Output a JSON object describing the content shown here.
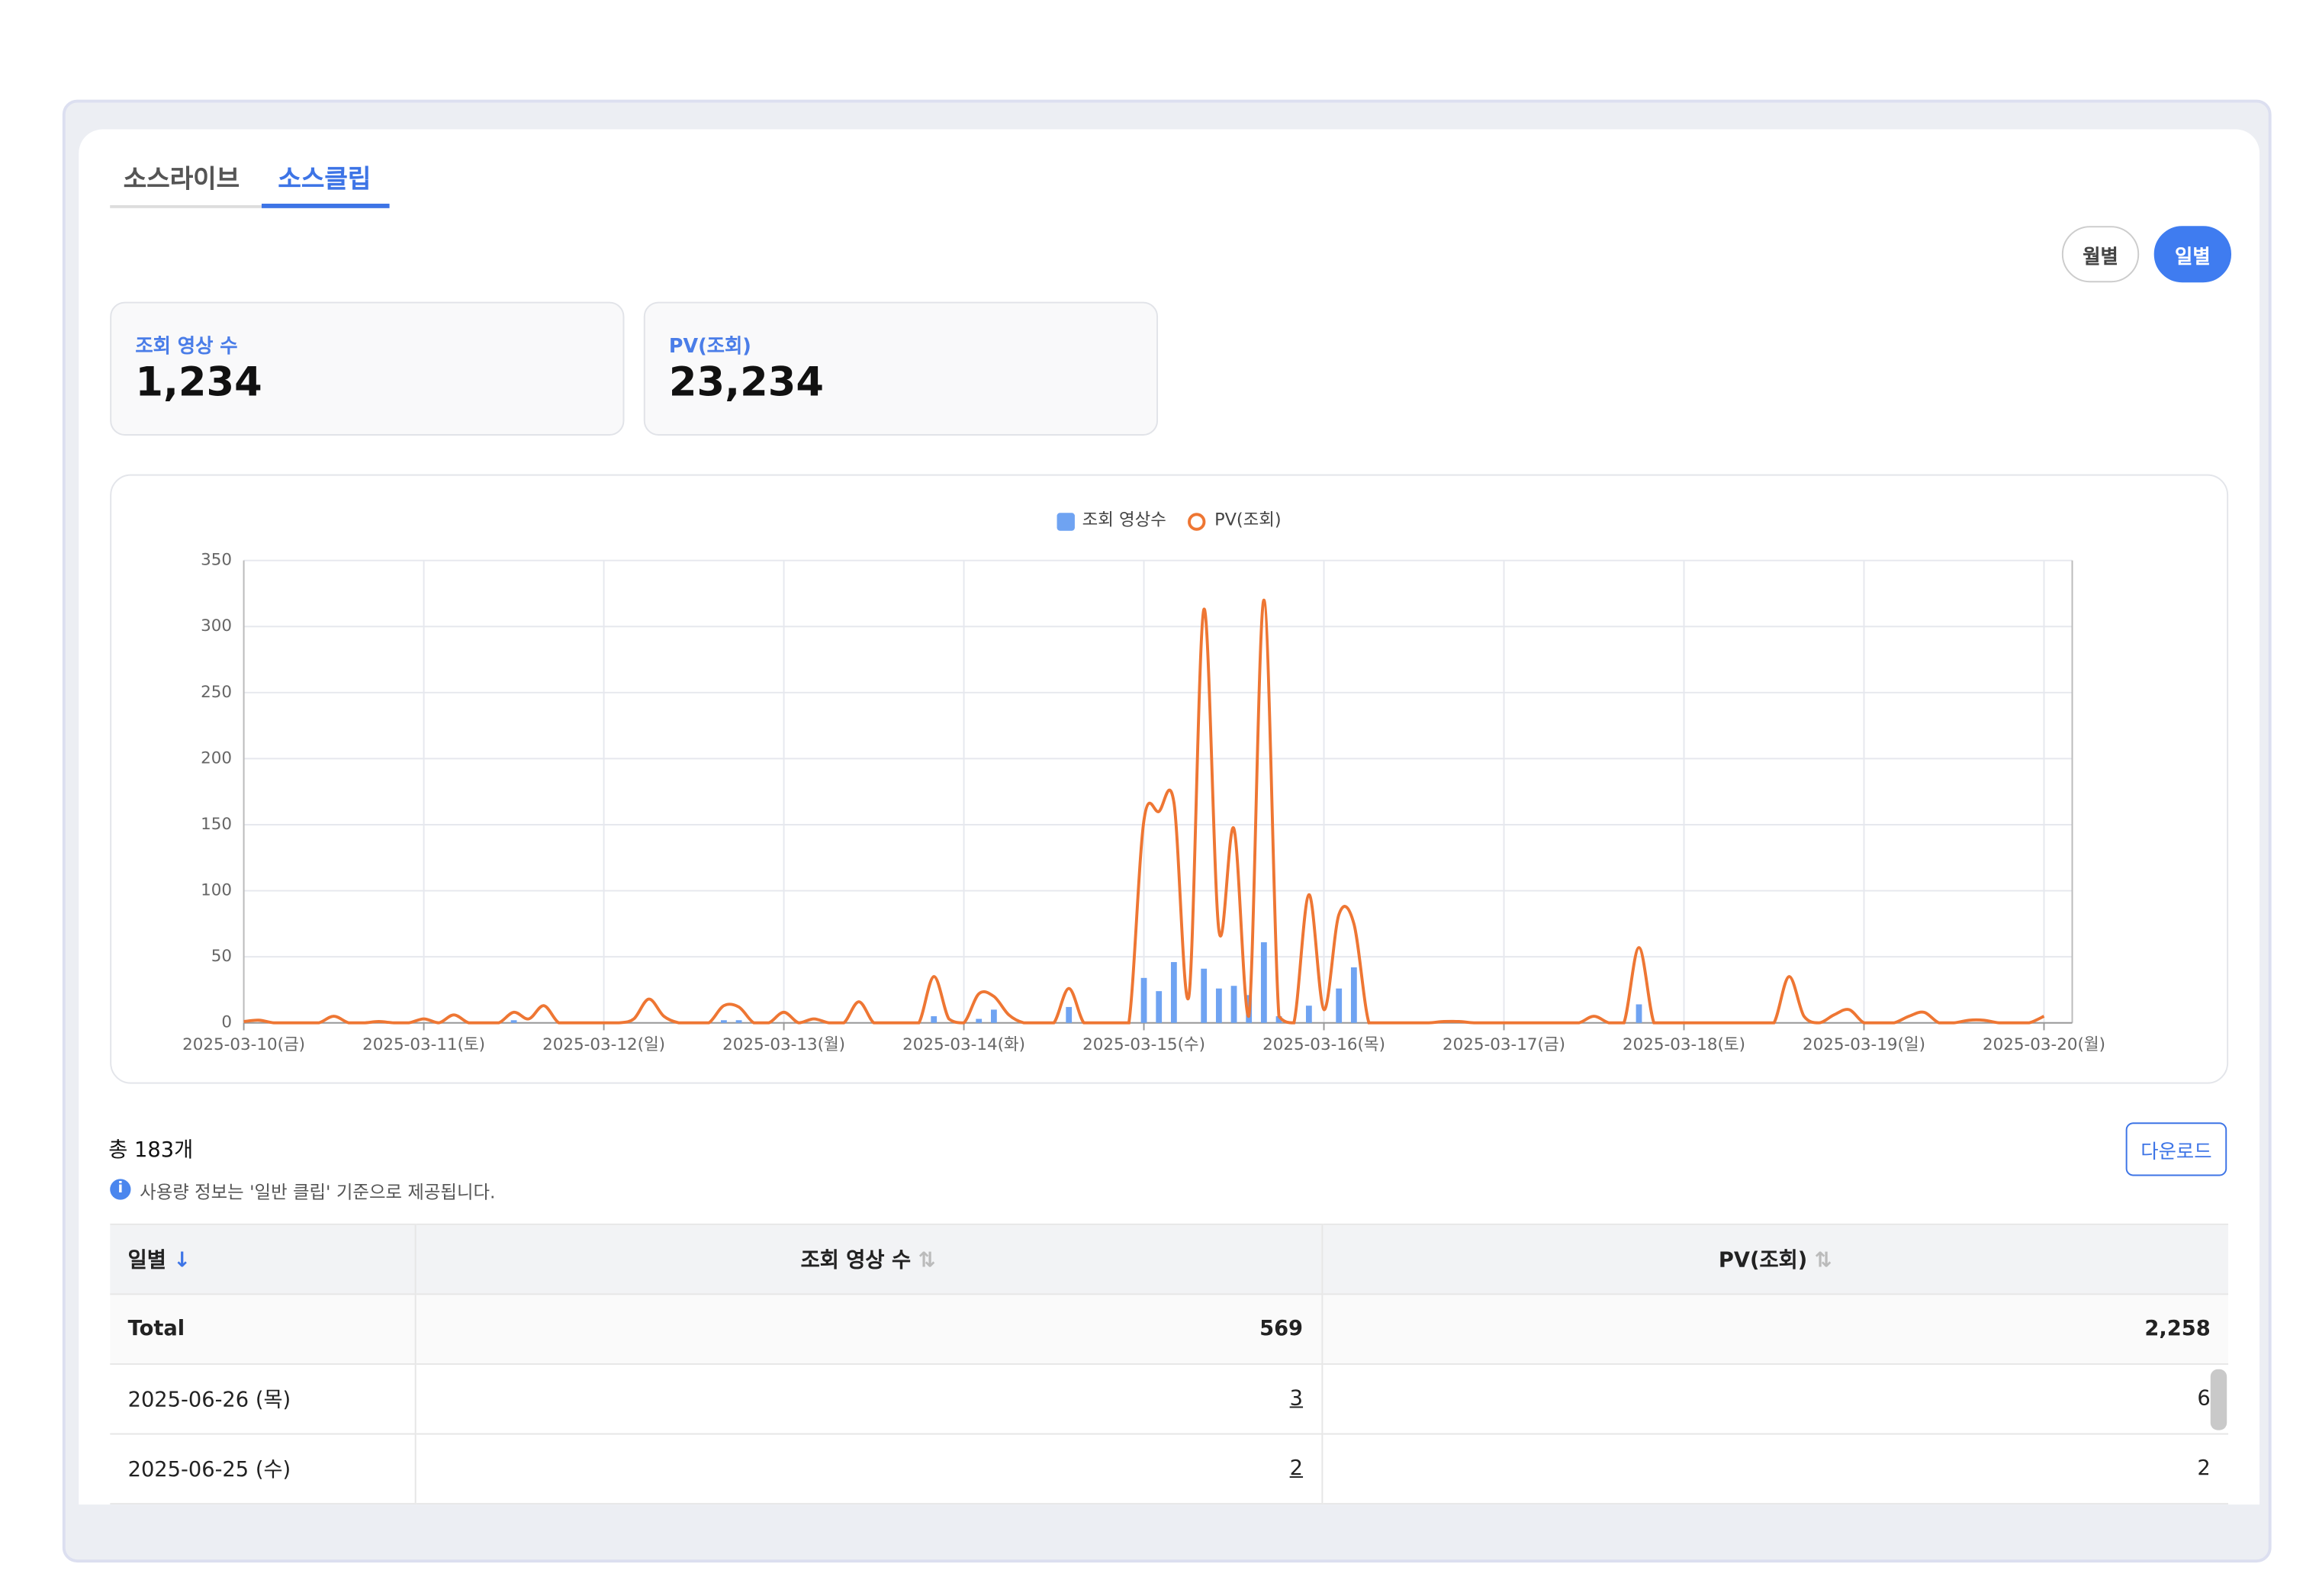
{
  "tabs": {
    "items": [
      "소스라이브",
      "소스클립"
    ],
    "active": 1
  },
  "view_toggle": {
    "items": [
      "월별",
      "일별"
    ],
    "active": 1
  },
  "summary_cards": [
    {
      "label": "조회 영상 수",
      "value": "1,234"
    },
    {
      "label": "PV(조회)",
      "value": "23,234"
    }
  ],
  "chart_data": {
    "type": "bar_line",
    "categories": [
      "2025-03-10(금)",
      null,
      null,
      null,
      null,
      null,
      null,
      null,
      null,
      null,
      null,
      null,
      "2025-03-11(토)",
      null,
      null,
      null,
      null,
      null,
      null,
      null,
      null,
      null,
      null,
      null,
      "2025-03-12(일)",
      null,
      null,
      null,
      null,
      null,
      null,
      null,
      null,
      null,
      null,
      null,
      "2025-03-13(월)",
      null,
      null,
      null,
      null,
      null,
      null,
      null,
      null,
      null,
      null,
      null,
      "2025-03-14(화)",
      null,
      null,
      null,
      null,
      null,
      null,
      null,
      null,
      null,
      null,
      null,
      "2025-03-15(수)",
      null,
      null,
      null,
      null,
      null,
      null,
      null,
      null,
      null,
      null,
      null,
      "2025-03-16(목)",
      null,
      null,
      null,
      null,
      null,
      null,
      null,
      null,
      null,
      null,
      null,
      "2025-03-17(금)",
      null,
      null,
      null,
      null,
      null,
      null,
      null,
      null,
      null,
      null,
      null,
      "2025-03-18(토)",
      null,
      null,
      null,
      null,
      null,
      null,
      null,
      null,
      null,
      null,
      null,
      "2025-03-19(일)",
      null,
      null,
      null,
      null,
      null,
      null,
      null,
      null,
      null,
      null,
      null,
      "2025-03-20(월)"
    ],
    "series": [
      {
        "name": "조회 영상수",
        "type": "bar",
        "color": "#6fa3f2",
        "values": [
          0,
          0,
          0,
          0,
          0,
          0,
          0,
          0,
          0,
          0,
          0,
          0,
          0,
          0,
          0,
          0,
          0,
          0,
          2,
          0,
          0,
          0,
          0,
          0,
          0,
          0,
          0,
          0,
          0,
          0,
          0,
          0,
          2,
          2,
          0,
          0,
          0,
          0,
          0,
          0,
          0,
          0,
          0,
          0,
          0,
          0,
          5,
          0,
          0,
          3,
          10,
          0,
          0,
          0,
          0,
          12,
          0,
          0,
          0,
          0,
          34,
          24,
          46,
          0,
          41,
          26,
          28,
          21,
          61,
          5,
          0,
          13,
          0,
          26,
          42,
          0,
          0,
          0,
          0,
          0,
          0,
          0,
          0,
          0,
          0,
          0,
          0,
          0,
          0,
          0,
          0,
          0,
          0,
          14,
          0,
          0,
          0,
          0,
          0,
          0,
          0,
          0,
          0,
          0,
          0,
          0,
          0,
          0,
          0,
          0,
          0,
          0,
          0,
          0,
          0,
          0,
          0,
          0,
          0,
          0,
          0
        ]
      },
      {
        "name": "PV(조회)",
        "type": "line",
        "color": "#ee7633",
        "values": [
          1,
          2,
          0,
          0,
          0,
          0,
          5,
          0,
          0,
          1,
          0,
          0,
          3,
          0,
          6,
          0,
          0,
          0,
          8,
          3,
          13,
          0,
          0,
          0,
          0,
          0,
          3,
          18,
          5,
          0,
          0,
          0,
          13,
          12,
          0,
          0,
          8,
          0,
          3,
          0,
          0,
          16,
          0,
          0,
          0,
          0,
          35,
          3,
          0,
          22,
          20,
          6,
          0,
          0,
          0,
          26,
          0,
          0,
          0,
          0,
          153,
          160,
          167,
          20,
          313,
          70,
          147,
          5,
          320,
          5,
          0,
          97,
          10,
          82,
          75,
          0,
          0,
          0,
          0,
          0,
          1,
          1,
          0,
          0,
          0,
          0,
          0,
          0,
          0,
          0,
          5,
          0,
          0,
          57,
          0,
          0,
          0,
          0,
          0,
          0,
          0,
          0,
          0,
          35,
          5,
          0,
          6,
          10,
          0,
          0,
          0,
          5,
          8,
          0,
          0,
          2,
          2,
          0,
          0,
          0,
          5
        ]
      }
    ],
    "ylim": [
      0,
      350
    ],
    "yticks": [
      0,
      50,
      100,
      150,
      200,
      250,
      300,
      350
    ],
    "grid": true,
    "legend": "top"
  },
  "table_summary": {
    "total": "총 183개",
    "info": "사용량 정보는 '일반 클립' 기준으로 제공됩니다.",
    "download": "다운로드"
  },
  "table": {
    "headers": [
      "일별",
      "조회 영상 수",
      "PV(조회)"
    ],
    "rows": [
      [
        "Total",
        "569",
        "2,258"
      ],
      [
        "2025-06-26 (목)",
        "3",
        "6"
      ],
      [
        "2025-06-25 (수)",
        "2",
        "2"
      ]
    ]
  }
}
